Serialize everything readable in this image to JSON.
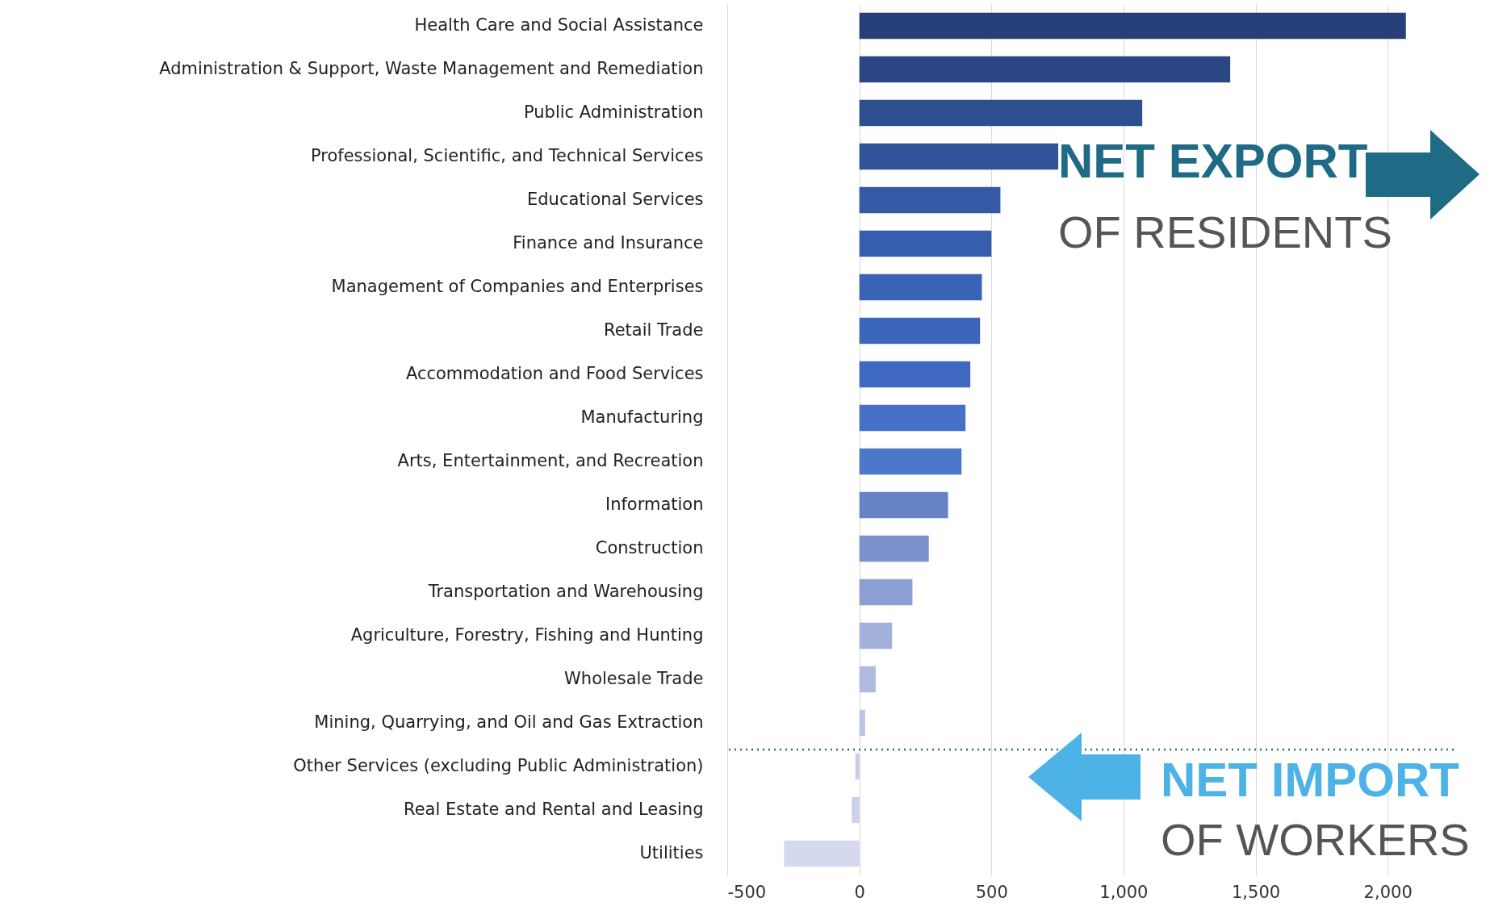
{
  "chart_data": {
    "type": "bar",
    "orientation": "horizontal",
    "categories": [
      "Health Care and Social Assistance",
      "Administration & Support, Waste Management and Remediation",
      "Public Administration",
      "Professional, Scientific, and Technical Services",
      "Educational Services",
      "Finance and Insurance",
      "Management of Companies and Enterprises",
      "Retail Trade",
      "Accommodation and Food Services",
      "Manufacturing",
      "Arts, Entertainment, and Recreation",
      "Information",
      "Construction",
      "Transportation and Warehousing",
      "Agriculture, Forestry, Fishing and Hunting",
      "Wholesale Trade",
      "Mining, Quarrying, and Oil and Gas Extraction",
      "Other Services (excluding Public Administration)",
      "Real Estate and Rental and Leasing",
      "Utilities"
    ],
    "values": [
      2069,
      1404,
      1071,
      753,
      534,
      500,
      464,
      457,
      420,
      402,
      387,
      336,
      263,
      201,
      124,
      62,
      22,
      -15,
      -29,
      -285
    ],
    "colors": [
      "#263f78",
      "#2a4784",
      "#2d4e8f",
      "#30549a",
      "#3459a5",
      "#375eae",
      "#3a62b5",
      "#3c66bb",
      "#3f69c1",
      "#4470c7",
      "#4d78c9",
      "#6783c8",
      "#7b92cd",
      "#8c9fd2",
      "#a3b1da",
      "#b0bbe0",
      "#bcc5e4",
      "#c6cde8",
      "#ccd2eb",
      "#d5d9ee"
    ],
    "xlim": [
      -500,
      2250
    ],
    "xticks": [
      -500,
      0,
      500,
      {
        "value": 1000,
        "label": "1,000"
      },
      {
        "value": 1500,
        "label": "1,500"
      },
      {
        "value": 2000,
        "label": "2,000"
      }
    ],
    "grid": "x",
    "ref_lines": [
      {
        "axis": "y",
        "value": "Other Services (excluding Public Administration)",
        "color": "#1f6b85",
        "line_style": "dotted"
      }
    ],
    "annotations": [
      "NET EXPORT",
      "OF RESIDENTS",
      "NET IMPORT",
      "OF WORKERS"
    ]
  }
}
